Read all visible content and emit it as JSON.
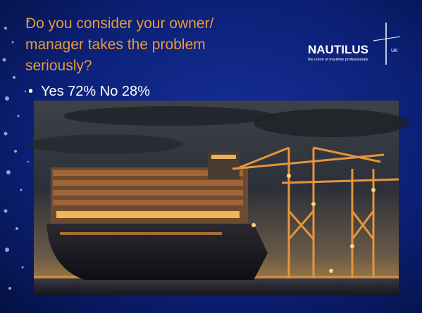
{
  "slide": {
    "title_lines": [
      "Do you consider your owner/",
      "manager takes the problem",
      "seriously?"
    ],
    "bullets": [
      "Yes 72% No 28%"
    ],
    "logo": {
      "name": "NAUTILUS",
      "country": "UK",
      "tagline": "the union of maritime professionals"
    }
  }
}
